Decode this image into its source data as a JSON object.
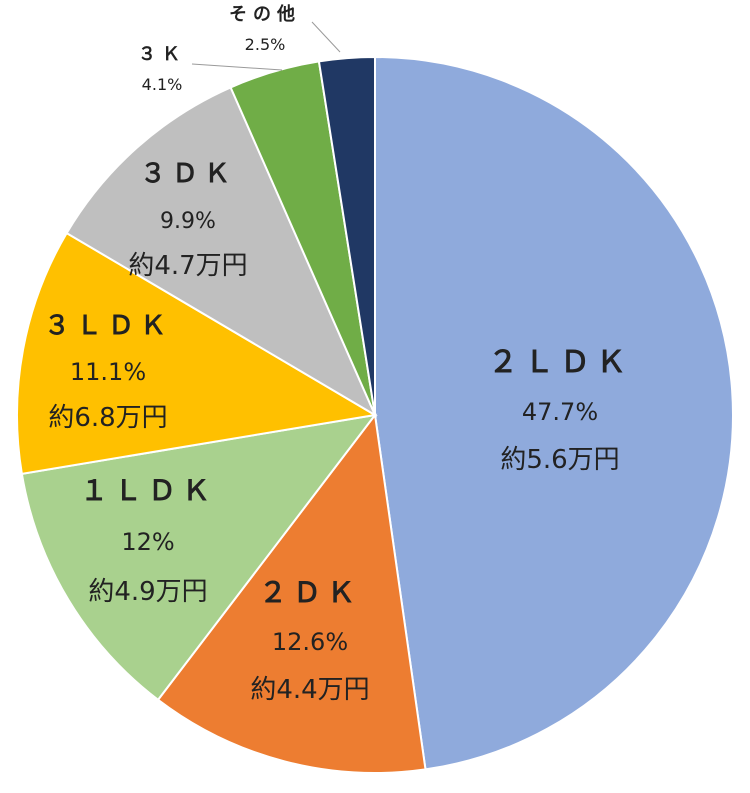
{
  "chart_data": {
    "type": "pie",
    "title": "",
    "categories": [
      "2LDK",
      "2DK",
      "1LDK",
      "3LDK",
      "3DK",
      "3K",
      "その他"
    ],
    "values": [
      47.7,
      12.6,
      12,
      11.1,
      9.9,
      4.1,
      2.5
    ],
    "colors": [
      "#8FAADC",
      "#ED7D31",
      "#A9D18E",
      "#FFC000",
      "#BFBFBF",
      "#70AD47",
      "#203864"
    ],
    "start": "12 o'clock, clockwise",
    "labels": [
      {
        "name": "２ＬＤＫ",
        "pct": "47.7%",
        "price": "約5.6万円"
      },
      {
        "name": "２ＤＫ",
        "pct": "12.6%",
        "price": "約4.4万円"
      },
      {
        "name": "１ＬＤＫ",
        "pct": "12%",
        "price": "約4.9万円"
      },
      {
        "name": "３ＬＤＫ",
        "pct": "11.1%",
        "price": "約6.8万円"
      },
      {
        "name": "３ＤＫ",
        "pct": "9.9%",
        "price": "約4.7万円"
      },
      {
        "name": "３Ｋ",
        "pct": "4.1%",
        "price": ""
      },
      {
        "name": "その他",
        "pct": "2.5%",
        "price": ""
      }
    ]
  }
}
